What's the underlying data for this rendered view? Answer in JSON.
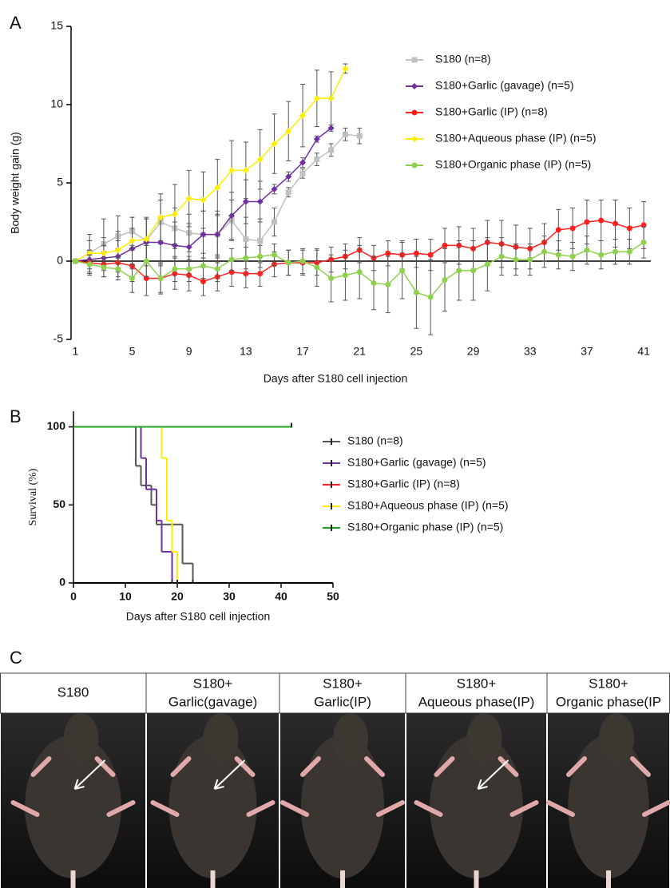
{
  "panel_labels": [
    "A",
    "B",
    "C"
  ],
  "chart_data": [
    {
      "type": "line",
      "x_label": "Days after S180 cell injection",
      "y_label": "Body weight gain (g)",
      "xlim": [
        0.7,
        41.5
      ],
      "ylim": [
        -5,
        15
      ],
      "xticks": [
        1,
        5,
        9,
        13,
        17,
        21,
        25,
        29,
        33,
        37,
        41
      ],
      "yticks": [
        -5,
        0,
        5,
        10,
        15
      ],
      "x": [
        1,
        2,
        3,
        4,
        5,
        6,
        7,
        8,
        9,
        10,
        11,
        12,
        13,
        14,
        15,
        16,
        17,
        18,
        19,
        20,
        21,
        22,
        23,
        24,
        25,
        26,
        27,
        28,
        29,
        30,
        31,
        32,
        33,
        34,
        35,
        36,
        37,
        38,
        39,
        40,
        41
      ],
      "series": [
        {
          "name": "S180 (n=8)",
          "color": "#c0c0c0",
          "marker": "square",
          "values": [
            0,
            0.5,
            1.1,
            1.6,
            1.9,
            1.3,
            2.5,
            2.1,
            1.8,
            1.7,
            1.7,
            2.6,
            1.4,
            1.3,
            2.5,
            4.4,
            5.6,
            6.5,
            7.1,
            8.1,
            8.0,
            null,
            null,
            null,
            null,
            null,
            null,
            null,
            null,
            null,
            null,
            null,
            null,
            null,
            null,
            null,
            null,
            null,
            null,
            null,
            null
          ],
          "errors": [
            0,
            1.2,
            1.6,
            1.3,
            0.9,
            1.4,
            1.4,
            1.3,
            1.2,
            1.5,
            1.3,
            1.3,
            1.4,
            1.4,
            0.9,
            0.3,
            0.3,
            0.4,
            0.4,
            0.4,
            0.5,
            null,
            null,
            null,
            null,
            null,
            null,
            null,
            null,
            null,
            null,
            null,
            null,
            null,
            null,
            null,
            null,
            null,
            null,
            null,
            null
          ]
        },
        {
          "name": "S180+Garlic (gavage) (n=5)",
          "color": "#7030a0",
          "marker": "diamond",
          "values": [
            0,
            0.1,
            0.2,
            0.3,
            0.8,
            1.2,
            1.2,
            1.0,
            0.9,
            1.7,
            1.7,
            2.9,
            3.8,
            3.8,
            4.6,
            5.4,
            6.3,
            7.8,
            8.5,
            null,
            null,
            null,
            null,
            null,
            null,
            null,
            null,
            null,
            null,
            null,
            null,
            null,
            null,
            null,
            null,
            null,
            null,
            null,
            null,
            null,
            null
          ],
          "errors": [
            0,
            0.6,
            0.8,
            1.0,
            1.3,
            1.5,
            1.5,
            1.5,
            1.5,
            1.5,
            1.5,
            1.5,
            1.4,
            1.3,
            0.3,
            0.3,
            0.3,
            0.2,
            0.2,
            null,
            null,
            null,
            null,
            null,
            null,
            null,
            null,
            null,
            null,
            null,
            null,
            null,
            null,
            null,
            null,
            null,
            null,
            null,
            null,
            null,
            null
          ]
        },
        {
          "name": "S180+Garlic (IP) (n=8)",
          "color": "#ff2020",
          "marker": "circle",
          "values": [
            0,
            -0.1,
            -0.2,
            -0.1,
            -0.3,
            -1.1,
            -1.1,
            -0.8,
            -0.9,
            -1.3,
            -1.0,
            -0.7,
            -0.8,
            -0.8,
            -0.2,
            -0.1,
            -0.1,
            -0.1,
            0.1,
            0.3,
            0.7,
            0.2,
            0.5,
            0.4,
            0.5,
            0.4,
            1.0,
            1.0,
            0.8,
            1.2,
            1.1,
            0.9,
            0.8,
            1.2,
            2.0,
            2.1,
            2.5,
            2.6,
            2.4,
            2.1,
            2.3
          ],
          "errors": [
            0,
            0.8,
            0.8,
            0.9,
            1.0,
            1.1,
            1.0,
            1.0,
            1.0,
            0.9,
            0.9,
            0.9,
            0.9,
            0.8,
            0.8,
            0.8,
            0.8,
            0.8,
            0.8,
            0.8,
            0.8,
            0.8,
            0.8,
            0.9,
            0.9,
            1.0,
            1.1,
            1.2,
            1.3,
            1.4,
            1.5,
            1.4,
            1.3,
            1.2,
            1.3,
            1.3,
            1.4,
            1.3,
            1.5,
            1.3,
            1.5
          ]
        },
        {
          "name": "S180+Aqueous phase (IP) (n=5)",
          "color": "#ffee00",
          "marker": "diamond",
          "values": [
            0,
            0.5,
            0.5,
            0.7,
            1.3,
            1.4,
            2.8,
            3.0,
            4.0,
            3.9,
            4.7,
            5.8,
            5.8,
            6.5,
            7.5,
            8.3,
            9.3,
            10.4,
            10.4,
            12.3,
            null,
            null,
            null,
            null,
            null,
            null,
            null,
            null,
            null,
            null,
            null,
            null,
            null,
            null,
            null,
            null,
            null,
            null,
            null,
            null,
            null
          ],
          "errors": [
            0,
            0.8,
            1.0,
            1.2,
            1.5,
            1.4,
            1.5,
            1.9,
            1.8,
            1.8,
            1.8,
            1.9,
            1.8,
            1.9,
            1.9,
            1.9,
            2.0,
            1.8,
            1.7,
            0.3,
            null,
            null,
            null,
            null,
            null,
            null,
            null,
            null,
            null,
            null,
            null,
            null,
            null,
            null,
            null,
            null,
            null,
            null,
            null,
            null,
            null
          ]
        },
        {
          "name": "S180+Organic phase (IP) (n=5)",
          "color": "#8fd14f",
          "marker": "circle",
          "values": [
            0,
            -0.2,
            -0.4,
            -0.5,
            -1.1,
            0.0,
            -1.1,
            -0.5,
            -0.5,
            -0.3,
            -0.5,
            0.1,
            0.2,
            0.3,
            0.4,
            -0.1,
            0.0,
            -0.4,
            -1.1,
            -0.9,
            -0.7,
            -1.4,
            -1.5,
            -0.6,
            -2.0,
            -2.3,
            -1.2,
            -0.6,
            -0.6,
            -0.2,
            0.3,
            0.1,
            0.1,
            0.6,
            0.4,
            0.3,
            0.7,
            0.4,
            0.6,
            0.6,
            1.2
          ],
          "errors": [
            0,
            0.6,
            0.6,
            0.7,
            0.9,
            1.0,
            0.9,
            0.8,
            0.8,
            0.8,
            0.8,
            0.7,
            0.7,
            0.7,
            0.7,
            0.8,
            0.8,
            1.2,
            1.5,
            1.6,
            1.7,
            1.7,
            1.8,
            1.8,
            2.3,
            2.4,
            2.0,
            1.9,
            1.9,
            1.7,
            1.2,
            1.0,
            1.0,
            1.0,
            0.9,
            0.9,
            0.9,
            0.9,
            0.8,
            0.8,
            1.0
          ]
        }
      ]
    },
    {
      "type": "step",
      "x_label": "Days after S180 cell injection",
      "y_label": "Survival (%)",
      "xlim": [
        0,
        50
      ],
      "ylim": [
        0,
        110
      ],
      "xticks": [
        0,
        10,
        20,
        30,
        40,
        50
      ],
      "yticks": [
        0,
        50,
        100
      ],
      "series": [
        {
          "name": "S180 (n=8)",
          "color": "#555555",
          "x": [
            0,
            12,
            13,
            15,
            16,
            21,
            23
          ],
          "values": [
            100,
            75,
            62.5,
            50,
            37.5,
            12.5,
            0
          ]
        },
        {
          "name": "S180+Garlic (gavage) (n=5)",
          "color": "#7030a0",
          "x": [
            0,
            13,
            14,
            16,
            17,
            19
          ],
          "values": [
            100,
            80,
            60,
            40,
            20,
            0
          ]
        },
        {
          "name": "S180+Garlic (IP) (n=8)",
          "color": "#ff2020",
          "x": [
            0,
            42
          ],
          "values": [
            100,
            100
          ]
        },
        {
          "name": "S180+Aqueous phase (IP) (n=5)",
          "color": "#ffee00",
          "x": [
            0,
            17,
            18,
            19,
            20
          ],
          "values": [
            100,
            80,
            40,
            20,
            0
          ]
        },
        {
          "name": "S180+Organic phase (IP) (n=5)",
          "color": "#20a020",
          "x": [
            0,
            42
          ],
          "values": [
            100,
            100.5
          ]
        }
      ]
    }
  ],
  "photo_panel": {
    "columns": [
      [
        "S180"
      ],
      [
        "S180+",
        "Garlic(gavage)"
      ],
      [
        "S180+",
        "Garlic(IP)"
      ],
      [
        "S180+",
        "Aqueous phase(IP)"
      ],
      [
        "S180+",
        "Organic phase(IP"
      ]
    ]
  }
}
